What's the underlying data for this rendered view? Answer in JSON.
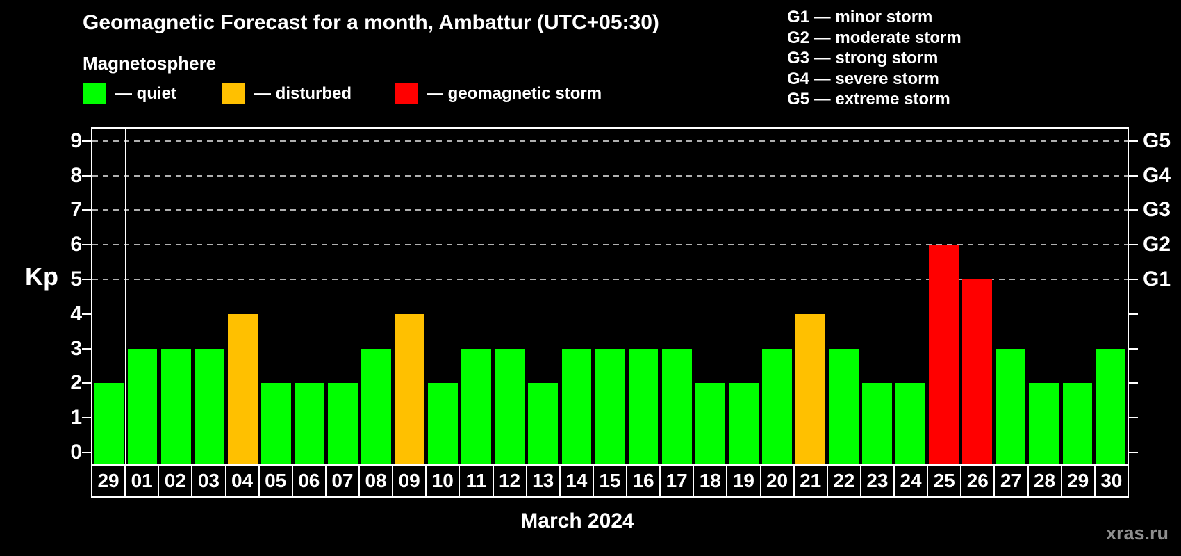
{
  "header": {
    "title": "Geomagnetic Forecast for a month, Ambattur (UTC+05:30)",
    "subtitle": "Magnetosphere"
  },
  "legend": {
    "items": [
      {
        "key": "quiet",
        "label": "— quiet",
        "color": "#00ff00"
      },
      {
        "key": "disturbed",
        "label": "— disturbed",
        "color": "#ffc000"
      },
      {
        "key": "storm",
        "label": "— geomagnetic storm",
        "color": "#ff0000"
      }
    ]
  },
  "storm_scale_legend": [
    "G1 — minor storm",
    "G2 — moderate storm",
    "G3 — strong storm",
    "G4 — severe storm",
    "G5 — extreme storm"
  ],
  "footer": {
    "caption": "March 2024",
    "watermark": "xras.ru"
  },
  "colors": {
    "background": "#000000",
    "text": "#ffffff",
    "axis": "#ffffff",
    "grid": "#b0b0b0",
    "quiet": "#00ff00",
    "disturbed": "#ffc000",
    "storm": "#ff0000",
    "watermark": "#8f8f8f"
  },
  "chart_data": {
    "type": "bar",
    "title": "Geomagnetic Forecast for a month, Ambattur (UTC+05:30)",
    "ylabel": "Kp",
    "xlabel": "March 2024",
    "ylim": [
      0,
      9.4
    ],
    "yticks": [
      0,
      1,
      2,
      3,
      4,
      5,
      6,
      7,
      8,
      9
    ],
    "gridlines_at": [
      5,
      6,
      7,
      8,
      9
    ],
    "grid": "dashed horizontal lines at Kp 5-9 only",
    "legend_position": "top-left",
    "right_axis": [
      {
        "kp": 5,
        "label": "G1"
      },
      {
        "kp": 6,
        "label": "G2"
      },
      {
        "kp": 7,
        "label": "G3"
      },
      {
        "kp": 8,
        "label": "G4"
      },
      {
        "kp": 9,
        "label": "G5"
      }
    ],
    "categories": [
      "29",
      "01",
      "02",
      "03",
      "04",
      "05",
      "06",
      "07",
      "08",
      "09",
      "10",
      "11",
      "12",
      "13",
      "14",
      "15",
      "16",
      "17",
      "18",
      "19",
      "20",
      "21",
      "22",
      "23",
      "24",
      "25",
      "26",
      "27",
      "28",
      "29",
      "30"
    ],
    "values": [
      2,
      3,
      3,
      3,
      4,
      2,
      2,
      2,
      3,
      4,
      2,
      3,
      3,
      2,
      3,
      3,
      3,
      3,
      2,
      2,
      3,
      4,
      3,
      2,
      2,
      6,
      5,
      3,
      2,
      2,
      3
    ],
    "statuses": [
      "quiet",
      "quiet",
      "quiet",
      "quiet",
      "disturbed",
      "quiet",
      "quiet",
      "quiet",
      "quiet",
      "disturbed",
      "quiet",
      "quiet",
      "quiet",
      "quiet",
      "quiet",
      "quiet",
      "quiet",
      "quiet",
      "quiet",
      "quiet",
      "quiet",
      "disturbed",
      "quiet",
      "quiet",
      "quiet",
      "storm",
      "storm",
      "quiet",
      "quiet",
      "quiet",
      "quiet"
    ],
    "bar_color_rule": {
      "quiet": "Kp <= 3",
      "disturbed": "Kp = 4",
      "storm": "Kp >= 5"
    },
    "month_separator_after_index": 0
  }
}
